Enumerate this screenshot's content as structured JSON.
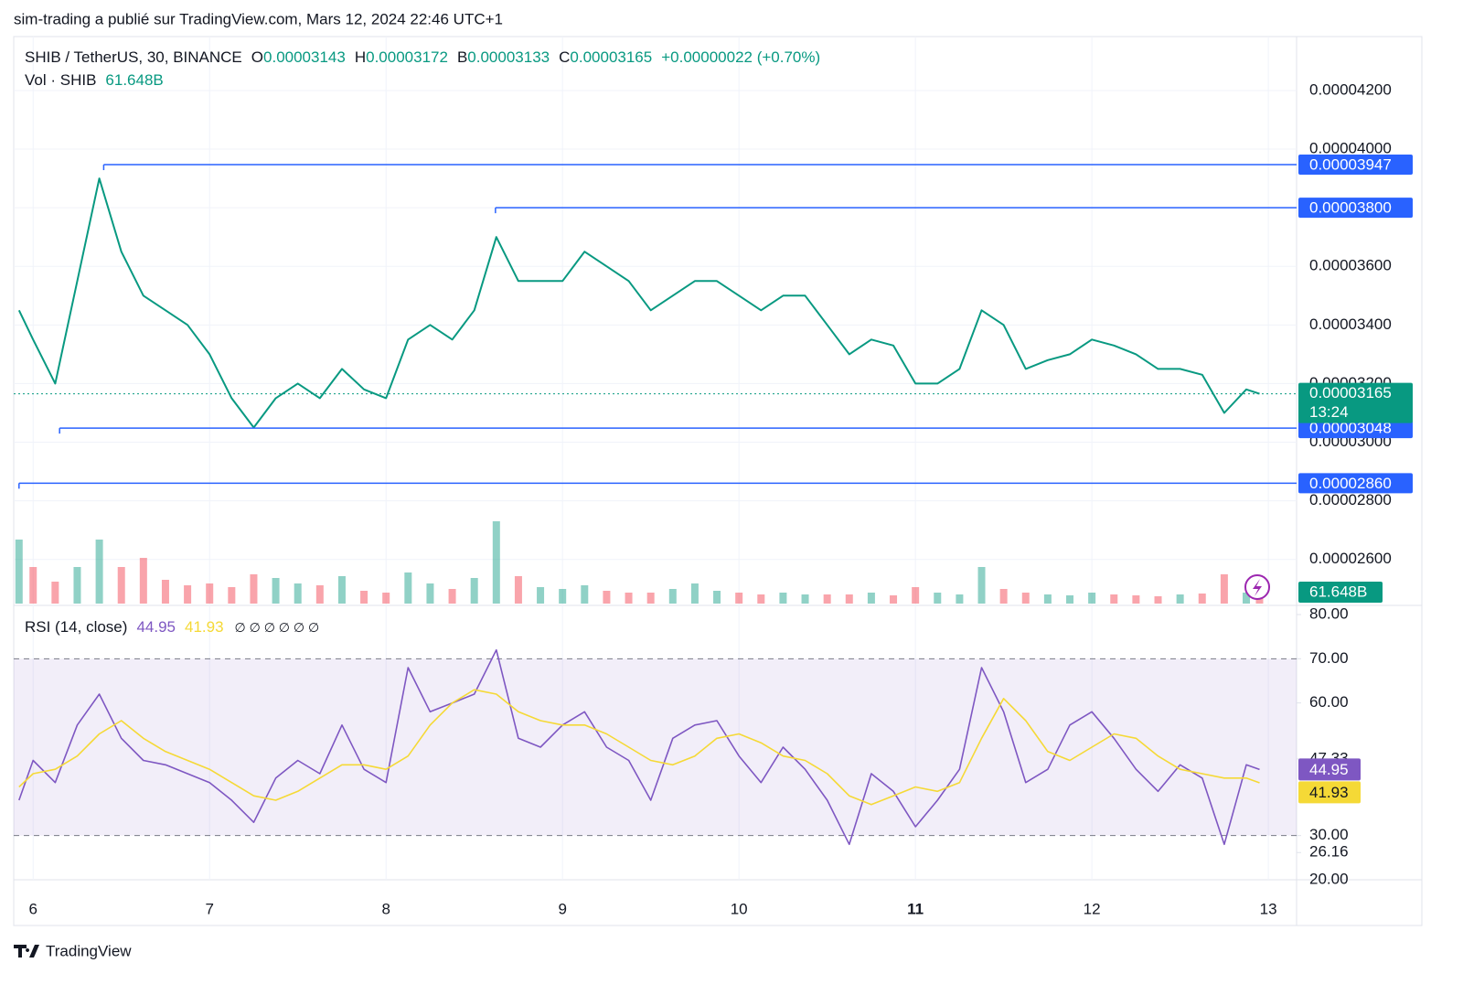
{
  "header": "sim-trading a publié sur TradingView.com, Mars 12, 2024 22:46 UTC+1",
  "footer": "TradingView",
  "chart_data": [
    {
      "type": "line",
      "title": "SHIB / TetherUS, 30, BINANCE",
      "legend": {
        "o_label": "O",
        "open": 3.143e-05,
        "h_label": "H",
        "high": 3.172e-05,
        "l_label": "B",
        "low": 3.133e-05,
        "c_label": "C",
        "close": 3.165e-05,
        "change": "+0.00000022 (+0.70%)"
      },
      "x": [
        5.92,
        6,
        6.125,
        6.25,
        6.375,
        6.5,
        6.625,
        6.75,
        6.875,
        7,
        7.125,
        7.25,
        7.375,
        7.5,
        7.625,
        7.75,
        7.875,
        8,
        8.125,
        8.25,
        8.375,
        8.5,
        8.625,
        8.75,
        8.875,
        9,
        9.125,
        9.25,
        9.375,
        9.5,
        9.625,
        9.75,
        9.875,
        10,
        10.125,
        10.25,
        10.375,
        10.5,
        10.625,
        10.75,
        10.875,
        11,
        11.125,
        11.25,
        11.375,
        11.5,
        11.625,
        11.75,
        11.875,
        12,
        12.125,
        12.25,
        12.375,
        12.5,
        12.625,
        12.75,
        12.875,
        12.95
      ],
      "series": [
        {
          "color": "#089981",
          "values": [
            3.45e-05,
            3.35e-05,
            3.2e-05,
            3.55e-05,
            3.9e-05,
            3.65e-05,
            3.5e-05,
            3.45e-05,
            3.4e-05,
            3.3e-05,
            3.15e-05,
            3.05e-05,
            3.15e-05,
            3.2e-05,
            3.15e-05,
            3.25e-05,
            3.18e-05,
            3.15e-05,
            3.35e-05,
            3.4e-05,
            3.35e-05,
            3.45e-05,
            3.7e-05,
            3.55e-05,
            3.55e-05,
            3.55e-05,
            3.65e-05,
            3.6e-05,
            3.55e-05,
            3.45e-05,
            3.5e-05,
            3.55e-05,
            3.55e-05,
            3.5e-05,
            3.45e-05,
            3.5e-05,
            3.5e-05,
            3.4e-05,
            3.3e-05,
            3.35e-05,
            3.33e-05,
            3.2e-05,
            3.2e-05,
            3.25e-05,
            3.45e-05,
            3.4e-05,
            3.25e-05,
            3.28e-05,
            3.3e-05,
            3.35e-05,
            3.33e-05,
            3.3e-05,
            3.25e-05,
            3.25e-05,
            3.23e-05,
            3.1e-05,
            3.18e-05,
            3.165e-05
          ]
        }
      ],
      "up_color": "#089981",
      "down_color": "#f23645",
      "xlim": [
        5.89,
        13.16
      ],
      "xticks": [
        6,
        7,
        8,
        9,
        10,
        11,
        12,
        13
      ],
      "xtick_bold": 11,
      "ylim": [
        2.443e-05,
        4.384e-05
      ],
      "yticks": [
        {
          "value": 4.2e-05,
          "label": "0.00004200"
        },
        {
          "value": 4e-05,
          "label": "0.00004000"
        },
        {
          "value": 3.8e-05,
          "label": "0.00003800"
        },
        {
          "value": 3.6e-05,
          "label": "0.00003600"
        },
        {
          "value": 3.4e-05,
          "label": "0.00003400"
        },
        {
          "value": 3.2e-05,
          "label": "0.00003200"
        },
        {
          "value": 3e-05,
          "label": "0.00003000"
        },
        {
          "value": 2.8e-05,
          "label": "0.00002800"
        },
        {
          "value": 2.6e-05,
          "label": "0.00002600"
        }
      ],
      "grid": true,
      "levels": [
        {
          "value": 3.947e-05,
          "label": "0.00003947",
          "from": 6.4
        },
        {
          "value": 3.8e-05,
          "label": "0.00003800",
          "from": 8.62
        },
        {
          "value": 3.048e-05,
          "label": "0.00003048",
          "from": 6.15
        },
        {
          "value": 2.86e-05,
          "label": "0.00002860",
          "from": 5.92
        }
      ],
      "level_color": "#2962ff",
      "countdown": "13:24",
      "volume": {
        "label": "Vol · SHIB",
        "last_label": "61.648B",
        "values": [
          350,
          200,
          120,
          200,
          350,
          200,
          250,
          130,
          100,
          110,
          90,
          160,
          140,
          110,
          100,
          150,
          70,
          60,
          170,
          110,
          80,
          140,
          450,
          150,
          90,
          80,
          100,
          70,
          60,
          60,
          80,
          110,
          70,
          60,
          50,
          60,
          50,
          50,
          50,
          60,
          45,
          90,
          60,
          50,
          200,
          80,
          60,
          50,
          45,
          60,
          50,
          45,
          40,
          50,
          55,
          160,
          60,
          61.648
        ]
      }
    },
    {
      "type": "line",
      "title": "RSI (14, close)",
      "na": "∅ ∅ ∅ ∅ ∅ ∅",
      "series": [
        {
          "color": "#7e57c2",
          "values": [
            38,
            47,
            42,
            55,
            62,
            52,
            47,
            46,
            44,
            42,
            38,
            33,
            43,
            47,
            44,
            55,
            45,
            42,
            68,
            58,
            60,
            62,
            72,
            52,
            50,
            55,
            58,
            50,
            47,
            38,
            52,
            55,
            56,
            48,
            42,
            50,
            45,
            38,
            28,
            44,
            40,
            32,
            38,
            45,
            68,
            58,
            42,
            45,
            55,
            58,
            52,
            45,
            40,
            46,
            43,
            28,
            46,
            44.95
          ]
        },
        {
          "color": "#f5d936",
          "values": [
            41,
            44,
            45,
            48,
            53,
            56,
            52,
            49,
            47,
            45,
            42,
            39,
            38,
            40,
            43,
            46,
            46,
            45,
            48,
            55,
            60,
            63,
            62,
            58,
            56,
            55,
            55,
            53,
            50,
            47,
            46,
            48,
            52,
            53,
            51,
            48,
            47,
            44,
            39,
            37,
            39,
            41,
            40,
            42,
            52,
            61,
            56,
            49,
            47,
            50,
            53,
            52,
            48,
            45,
            44,
            43,
            43,
            41.93
          ]
        }
      ],
      "ylim": [
        20,
        82.07
      ],
      "yticks": [
        {
          "value": 80,
          "label": "80.00"
        },
        {
          "value": 70,
          "label": "70.00"
        },
        {
          "value": 60,
          "label": "60.00"
        },
        {
          "value": 47.33,
          "label": "47.33"
        },
        {
          "value": 30,
          "label": "30.00"
        },
        {
          "value": 26.16,
          "label": "26.16"
        },
        {
          "value": 20,
          "label": "20.00"
        }
      ],
      "band": [
        30,
        70
      ],
      "band_color": "#7e57c2"
    }
  ]
}
